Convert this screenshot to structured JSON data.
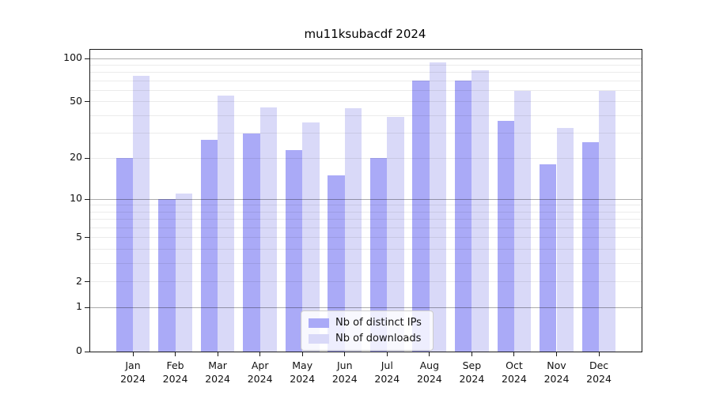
{
  "chart_data": {
    "type": "bar",
    "title": "mu11ksubacdf 2024",
    "categories": [
      "Jan",
      "Feb",
      "Mar",
      "Apr",
      "May",
      "Jun",
      "Jul",
      "Aug",
      "Sep",
      "Oct",
      "Nov",
      "Dec"
    ],
    "category_year": "2024",
    "series": [
      {
        "name": "Nb of distinct IPs",
        "color": "#aaaaf7",
        "values": [
          20,
          10,
          27,
          30,
          23,
          15,
          20,
          70,
          70,
          37,
          18,
          26
        ]
      },
      {
        "name": "Nb of downloads",
        "color": "#d9d9f8",
        "values": [
          76,
          11,
          55,
          46,
          36,
          45,
          39,
          94,
          83,
          60,
          33,
          60
        ]
      }
    ],
    "xlabel": "",
    "ylabel": "",
    "yscale": "log1p",
    "ylim": [
      0,
      100
    ],
    "ytick_labels": [
      "100",
      "50",
      "20",
      "10",
      "5",
      "2",
      "1",
      "0"
    ],
    "ytick_values": [
      100,
      50,
      20,
      10,
      5,
      2,
      1,
      0
    ],
    "gridlines_minor": [
      2,
      3,
      4,
      5,
      6,
      7,
      8,
      9,
      20,
      30,
      40,
      50,
      60,
      70,
      80,
      90
    ],
    "gridlines_major": [
      1,
      10,
      100
    ],
    "grid": true,
    "legend_position": "lower center"
  }
}
